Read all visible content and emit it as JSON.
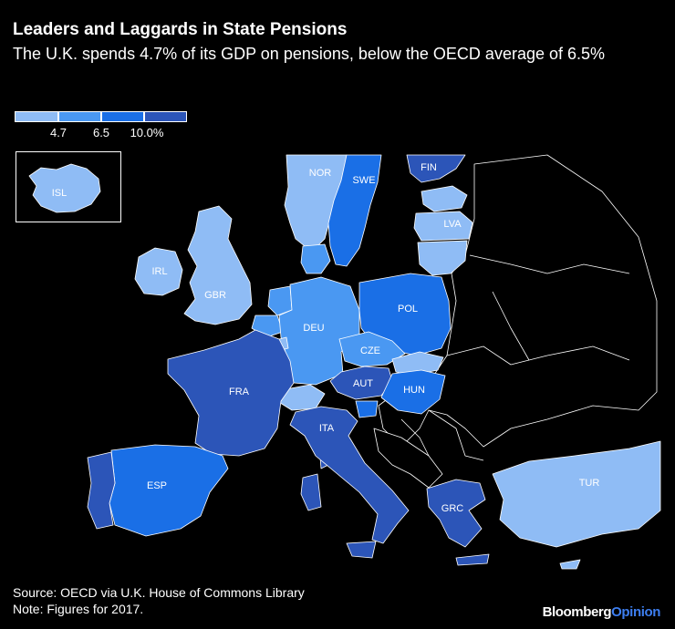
{
  "title": "Leaders and Laggards in State Pensions",
  "subtitle": "The U.K. spends 4.7% of its GDP on pensions, below the OECD average of 6.5%",
  "legend": {
    "ticks": [
      "4.7",
      "6.5",
      "10.0%"
    ],
    "colors": [
      "#8fbcf5",
      "#4a98f2",
      "#1a6fe6",
      "#2c55b8"
    ]
  },
  "colors": {
    "light": "#8fbcf5",
    "mid": "#4a98f2",
    "bright": "#1a6fe6",
    "dark": "#2c55b8",
    "nodata": "#000000",
    "border": "#ffffff"
  },
  "countries": {
    "ISL": "ISL",
    "NOR": "NOR",
    "SWE": "SWE",
    "FIN": "FIN",
    "LVA": "LVA",
    "IRL": "IRL",
    "GBR": "GBR",
    "DEU": "DEU",
    "POL": "POL",
    "CZE": "CZE",
    "AUT": "AUT",
    "HUN": "HUN",
    "FRA": "FRA",
    "ITA": "ITA",
    "ESP": "ESP",
    "GRC": "GRC",
    "TUR": "TUR"
  },
  "source": "Source: OECD via U.K. House of Commons Library",
  "note": "Note: Figures for 2017.",
  "brand": {
    "name": "Bloomberg",
    "suffix": "Opinion"
  }
}
